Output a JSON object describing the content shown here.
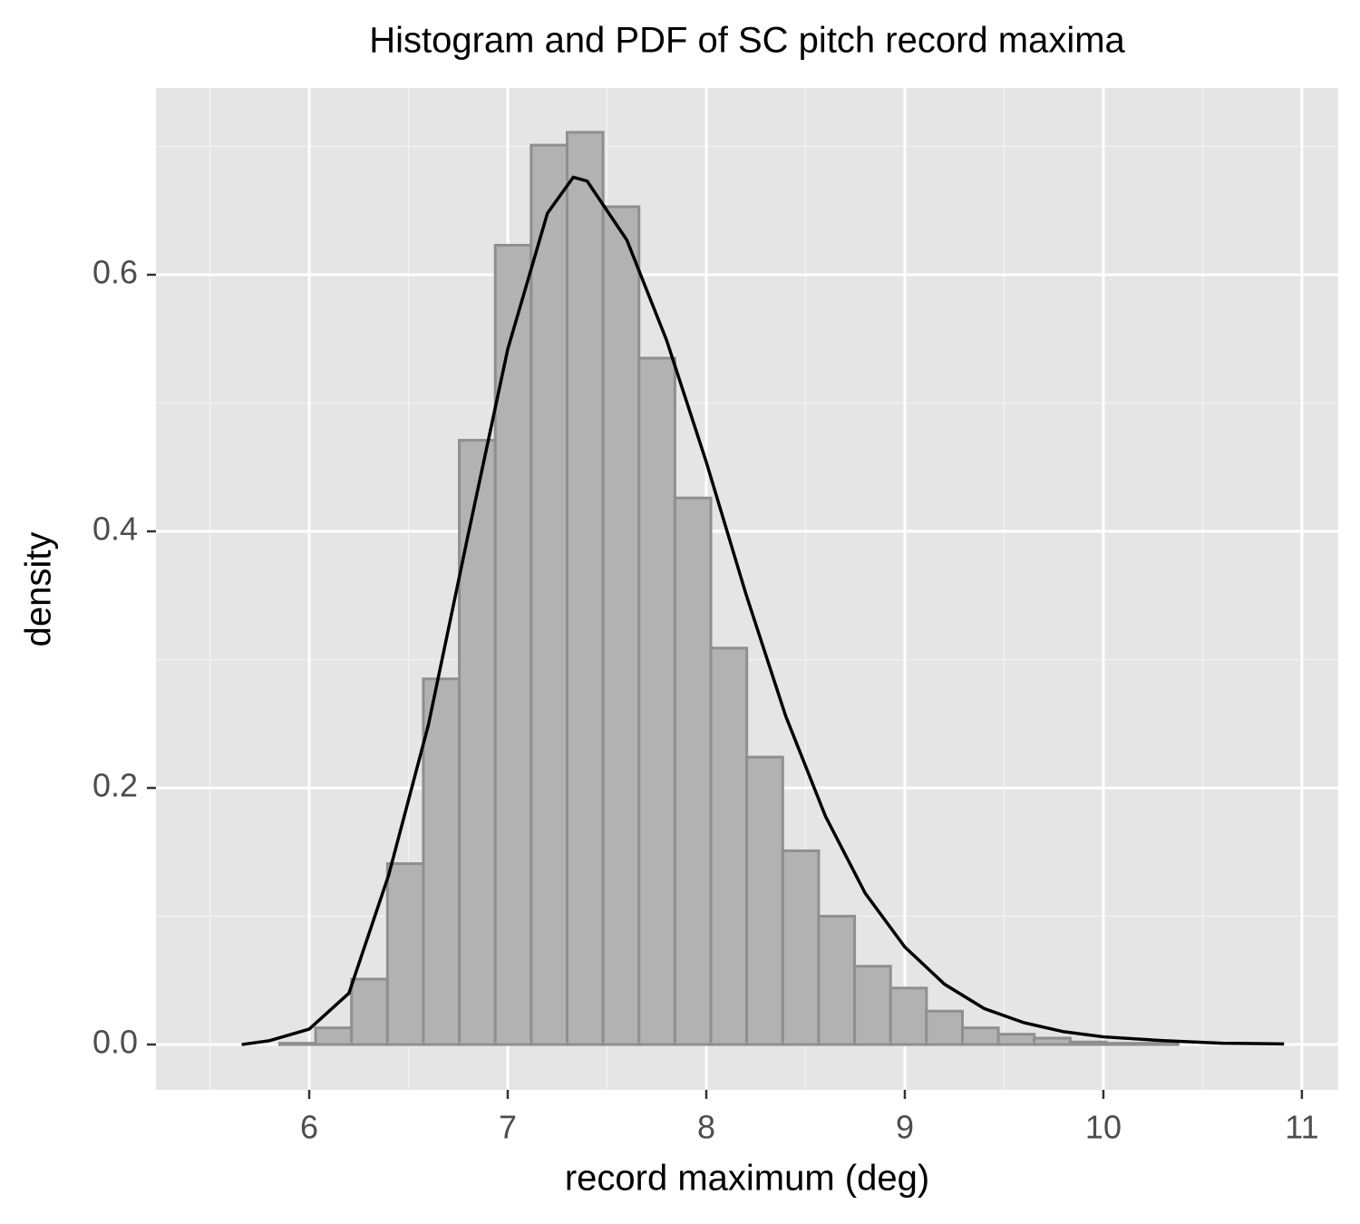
{
  "chart_data": {
    "type": "histogram",
    "title": "Histogram and PDF of SC pitch record maxima",
    "xlabel": "record maximum (deg)",
    "ylabel": "density",
    "bins": [
      5.489,
      5.67,
      5.851,
      6.032,
      6.213,
      6.394,
      6.575,
      6.756,
      6.937,
      7.118,
      7.299,
      7.48,
      7.661,
      7.842,
      8.023,
      8.204,
      8.385,
      8.566,
      8.747,
      8.928,
      9.109,
      9.29,
      9.471,
      9.652,
      9.833,
      10.014,
      10.195,
      10.376,
      10.557,
      10.738,
      10.919
    ],
    "values": [
      0,
      0,
      0.001,
      0.013,
      0.051,
      0.141,
      0.285,
      0.471,
      0.623,
      0.701,
      0.711,
      0.653,
      0.535,
      0.426,
      0.309,
      0.224,
      0.151,
      0.1,
      0.061,
      0.044,
      0.026,
      0.013,
      0.008,
      0.005,
      0.002,
      0.001,
      0.001,
      0,
      0,
      0
    ],
    "color": "#b2b2b2",
    "edgecolor": "#8f8f8f",
    "curve": {
      "color": "#000000",
      "x": [
        5.66,
        5.8,
        6.0,
        6.2,
        6.4,
        6.6,
        6.8,
        7.0,
        7.2,
        7.33,
        7.4,
        7.6,
        7.8,
        8.0,
        8.2,
        8.4,
        8.6,
        8.8,
        9.0,
        9.2,
        9.4,
        9.6,
        9.8,
        10.0,
        10.3,
        10.6,
        10.91
      ],
      "values": [
        0,
        0.003,
        0.012,
        0.04,
        0.132,
        0.249,
        0.397,
        0.542,
        0.648,
        0.676,
        0.673,
        0.627,
        0.549,
        0.454,
        0.351,
        0.256,
        0.178,
        0.118,
        0.076,
        0.047,
        0.028,
        0.017,
        0.01,
        0.006,
        0.003,
        0.001,
        0.0005
      ]
    },
    "xlim": [
      5.228,
      11.183
    ],
    "ylim": [
      -0.0353,
      0.7456
    ],
    "xticks": [
      6,
      7,
      8,
      9,
      10,
      11
    ],
    "yticks": [
      {
        "value": 0,
        "label": "0.0"
      },
      0.2,
      0.4,
      0.6
    ],
    "x_minor_ticks": [
      5.5,
      6.5,
      7.5,
      8.5,
      9.5,
      10.5
    ],
    "y_minor_ticks": [
      0.1,
      0.3,
      0.5,
      0.7
    ],
    "grid": true
  }
}
